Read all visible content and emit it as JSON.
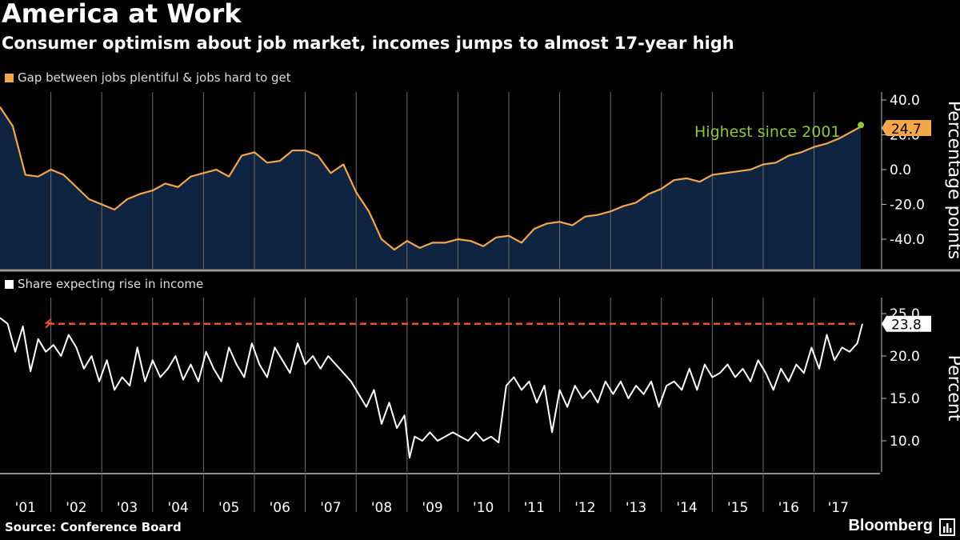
{
  "header": {
    "title": "America at Work",
    "subtitle": "Consumer optimism about job market, incomes jumps to almost 17-year high"
  },
  "footer": {
    "source": "Source: Conference Board",
    "brand": "Bloomberg"
  },
  "colors": {
    "background": "#000000",
    "orange": "#F5A54A",
    "area_fill": "#0E2440",
    "green": "#8CC63E",
    "ref_line": "#E8542A",
    "white": "#FFFFFF",
    "grid": "#6E6E6E"
  },
  "chart_data": [
    {
      "type": "area",
      "legend": "Gap between jobs plentiful & jobs hard to get",
      "ylabel": "Percentage points",
      "yticks": [
        "40.0",
        "20.0",
        "0.0",
        "-20.0",
        "-40.0"
      ],
      "ylim": [
        -57,
        40
      ],
      "xlim": [
        2001.0,
        2017.95
      ],
      "annotation": "Highest since 2001",
      "last_value": "24.7",
      "series": [
        {
          "x": [
            2001.0,
            2001.25,
            2001.5,
            2001.75,
            2002.0,
            2002.25,
            2002.5,
            2002.75,
            2003.0,
            2003.25,
            2003.5,
            2003.75,
            2004.0,
            2004.25,
            2004.5,
            2004.75,
            2005.0,
            2005.25,
            2005.5,
            2005.75,
            2006.0,
            2006.25,
            2006.5,
            2006.75,
            2007.0,
            2007.25,
            2007.5,
            2007.75,
            2008.0,
            2008.25,
            2008.5,
            2008.75,
            2009.0,
            2009.25,
            2009.5,
            2009.75,
            2010.0,
            2010.25,
            2010.5,
            2010.75,
            2011.0,
            2011.25,
            2011.5,
            2011.75,
            2012.0,
            2012.25,
            2012.5,
            2012.75,
            2013.0,
            2013.25,
            2013.5,
            2013.75,
            2014.0,
            2014.25,
            2014.5,
            2014.75,
            2015.0,
            2015.25,
            2015.5,
            2015.75,
            2016.0,
            2016.25,
            2016.5,
            2016.75,
            2017.0,
            2017.25,
            2017.5,
            2017.75,
            2017.92
          ],
          "values": [
            36,
            25,
            -3,
            -4,
            0,
            -3,
            -10,
            -17,
            -20,
            -23,
            -17,
            -14,
            -12,
            -8,
            -10,
            -4,
            -2,
            0,
            -4,
            8,
            10,
            4,
            5,
            11,
            11,
            8,
            -2,
            3,
            -13,
            -24,
            -40,
            -46,
            -41,
            -45,
            -42,
            -42,
            -40,
            -41,
            -44,
            -39,
            -38,
            -42,
            -34,
            -31,
            -30,
            -32,
            -27,
            -26,
            -24,
            -21,
            -19,
            -14,
            -11,
            -6,
            -5,
            -7,
            -3,
            -2,
            -1,
            0,
            3,
            4,
            8,
            10,
            13,
            15,
            18,
            22,
            24.7
          ]
        }
      ]
    },
    {
      "type": "line",
      "legend": "Share expecting rise in income",
      "ylabel": "Percent",
      "yticks": [
        "25.0",
        "20.0",
        "15.0",
        "10.0"
      ],
      "ylim": [
        5,
        25.5
      ],
      "xlim": [
        2001.0,
        2017.95
      ],
      "reference_line": 23.8,
      "last_value": "23.8",
      "series": [
        {
          "x": [
            2001.0,
            2001.15,
            2001.3,
            2001.45,
            2001.6,
            2001.75,
            2001.9,
            2002.05,
            2002.2,
            2002.35,
            2002.5,
            2002.65,
            2002.8,
            2002.95,
            2003.1,
            2003.25,
            2003.4,
            2003.55,
            2003.7,
            2003.85,
            2004.0,
            2004.15,
            2004.3,
            2004.45,
            2004.6,
            2004.75,
            2004.9,
            2005.05,
            2005.2,
            2005.35,
            2005.5,
            2005.65,
            2005.8,
            2005.95,
            2006.1,
            2006.25,
            2006.4,
            2006.55,
            2006.7,
            2006.85,
            2007.0,
            2007.15,
            2007.3,
            2007.45,
            2007.6,
            2007.75,
            2007.9,
            2008.05,
            2008.2,
            2008.35,
            2008.5,
            2008.65,
            2008.8,
            2008.95,
            2009.05,
            2009.15,
            2009.3,
            2009.45,
            2009.6,
            2009.75,
            2009.9,
            2010.05,
            2010.2,
            2010.35,
            2010.5,
            2010.65,
            2010.8,
            2010.95,
            2011.1,
            2011.25,
            2011.4,
            2011.55,
            2011.7,
            2011.85,
            2012.0,
            2012.15,
            2012.3,
            2012.45,
            2012.6,
            2012.75,
            2012.9,
            2013.05,
            2013.2,
            2013.35,
            2013.5,
            2013.65,
            2013.8,
            2013.95,
            2014.1,
            2014.25,
            2014.4,
            2014.55,
            2014.7,
            2014.85,
            2015.0,
            2015.15,
            2015.3,
            2015.45,
            2015.6,
            2015.75,
            2015.9,
            2016.05,
            2016.2,
            2016.35,
            2016.5,
            2016.65,
            2016.8,
            2016.95,
            2017.1,
            2017.25,
            2017.4,
            2017.55,
            2017.7,
            2017.85,
            2017.95
          ],
          "values": [
            24.5,
            23.8,
            20.5,
            23.5,
            18.2,
            22.0,
            20.5,
            21.3,
            20.0,
            22.5,
            21.0,
            18.5,
            20.0,
            17.0,
            19.5,
            16.0,
            17.5,
            16.5,
            21.0,
            17.0,
            19.5,
            17.5,
            18.5,
            20.0,
            17.2,
            19.0,
            17.0,
            20.5,
            18.5,
            17.0,
            21.0,
            19.0,
            17.5,
            21.5,
            19.0,
            17.5,
            21.0,
            19.5,
            18.0,
            21.5,
            19.0,
            20.0,
            18.5,
            20.0,
            19.0,
            18.0,
            17.0,
            15.5,
            14.0,
            16.0,
            12.0,
            14.5,
            11.5,
            13.0,
            8.0,
            10.5,
            10.0,
            11.0,
            10.0,
            10.5,
            11.0,
            10.5,
            10.0,
            11.0,
            10.0,
            10.5,
            9.8,
            16.5,
            17.5,
            16.0,
            17.0,
            14.5,
            16.5,
            11.0,
            16.0,
            14.0,
            16.5,
            15.0,
            16.0,
            14.5,
            17.0,
            15.5,
            17.0,
            15.0,
            16.5,
            15.5,
            17.0,
            14.0,
            16.5,
            17.0,
            16.0,
            18.5,
            16.0,
            19.0,
            17.5,
            18.0,
            19.0,
            17.5,
            18.5,
            17.0,
            19.5,
            18.0,
            16.0,
            18.5,
            17.0,
            19.0,
            18.0,
            21.0,
            18.5,
            22.5,
            19.5,
            21.0,
            20.5,
            21.5,
            23.8
          ]
        }
      ]
    }
  ],
  "x_axis": {
    "tick_labels": [
      "'01",
      "'02",
      "'03",
      "'04",
      "'05",
      "'06",
      "'07",
      "'08",
      "'09",
      "'10",
      "'11",
      "'12",
      "'13",
      "'14",
      "'15",
      "'16",
      "'17"
    ]
  }
}
